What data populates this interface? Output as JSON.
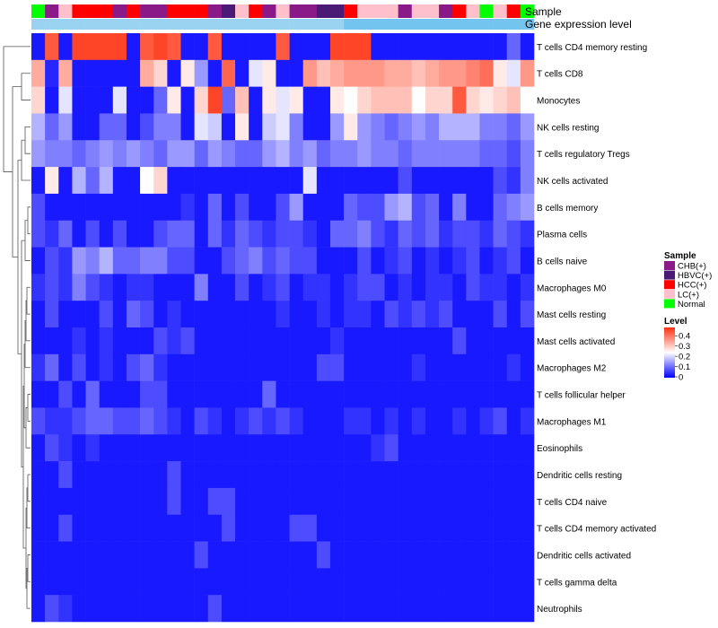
{
  "chart_data": {
    "type": "heatmap",
    "annotation_tracks": [
      "Sample",
      "Gene expression level"
    ],
    "rows": [
      "T cells CD4 memory resting",
      "T cells CD8",
      "Monocytes",
      "NK cells resting",
      "T cells regulatory  Tregs",
      "NK cells activated",
      "B cells memory",
      "Plasma cells",
      "B cells naive",
      "Macrophages M0",
      "Mast cells resting",
      "Mast cells activated",
      "Macrophages M2",
      "T cells follicular helper",
      "Macrophages M1",
      "Eosinophils",
      "Dendritic cells resting",
      "T cells CD4 naive",
      "T cells CD4 memory activated",
      "Dendritic cells activated",
      "T cells gamma delta",
      "Neutrophils"
    ],
    "sample_groups": [
      {
        "name": "CHB(+)",
        "color": "#8b1a89"
      },
      {
        "name": "HBVC(+)",
        "color": "#4b1a77"
      },
      {
        "name": "HCC(+)",
        "color": "#ff0000"
      },
      {
        "name": "LC(+)",
        "color": "#ffc0cb"
      },
      {
        "name": "Normal",
        "color": "#00ff00"
      }
    ],
    "sample_annotation": [
      4,
      0,
      3,
      2,
      2,
      2,
      0,
      2,
      0,
      0,
      2,
      2,
      2,
      0,
      1,
      3,
      2,
      0,
      3,
      0,
      0,
      1,
      1,
      2,
      3,
      3,
      3,
      0,
      3,
      3,
      0,
      2,
      3,
      4,
      3,
      2,
      4
    ],
    "expression_annotation": [
      0,
      0,
      0,
      0,
      0,
      0,
      0,
      0,
      0,
      0,
      0,
      0,
      0,
      0,
      0,
      0,
      0,
      0,
      0,
      0,
      0,
      0,
      0,
      1,
      1,
      1,
      1,
      1,
      1,
      1,
      1,
      1,
      1,
      1,
      1,
      1,
      1
    ],
    "expression_colors": [
      "#9ad3f2",
      "#74c4f0"
    ],
    "color_scale": {
      "title": "Level",
      "min": 0,
      "max": 0.4,
      "ticks": [
        "0",
        "0.1",
        "0.2",
        "0.3",
        "0.4"
      ],
      "colors": [
        "#0000ff",
        "#ffffff",
        "#ff3010"
      ]
    },
    "values": [
      [
        0.02,
        0.36,
        0.02,
        0.38,
        0.38,
        0.38,
        0.38,
        0.02,
        0.36,
        0.38,
        0.36,
        0.02,
        0.02,
        0.36,
        0.02,
        0.02,
        0.02,
        0.02,
        0.36,
        0.02,
        0.02,
        0.02,
        0.38,
        0.38,
        0.38,
        0.02,
        0.02,
        0.02,
        0.02,
        0.02,
        0.02,
        0.02,
        0.02,
        0.02,
        0.02,
        0.08,
        0.02
      ],
      [
        0.28,
        0.03,
        0.28,
        0.02,
        0.02,
        0.02,
        0.02,
        0.02,
        0.28,
        0.24,
        0.02,
        0.22,
        0.12,
        0.02,
        0.35,
        0.02,
        0.18,
        0.22,
        0.02,
        0.02,
        0.3,
        0.26,
        0.28,
        0.3,
        0.3,
        0.3,
        0.28,
        0.28,
        0.26,
        0.28,
        0.3,
        0.3,
        0.32,
        0.34,
        0.22,
        0.18,
        0.3
      ],
      [
        0.24,
        0.02,
        0.18,
        0.02,
        0.02,
        0.02,
        0.18,
        0.02,
        0.02,
        0.08,
        0.22,
        0.02,
        0.24,
        0.38,
        0.08,
        0.26,
        0.02,
        0.22,
        0.18,
        0.22,
        0.02,
        0.02,
        0.22,
        0.2,
        0.24,
        0.26,
        0.26,
        0.26,
        0.2,
        0.24,
        0.24,
        0.36,
        0.24,
        0.22,
        0.24,
        0.26,
        0.2
      ],
      [
        0.14,
        0.08,
        0.12,
        0.02,
        0.02,
        0.08,
        0.08,
        0.02,
        0.06,
        0.1,
        0.1,
        0.02,
        0.18,
        0.16,
        0.02,
        0.22,
        0.02,
        0.16,
        0.18,
        0.1,
        0.02,
        0.02,
        0.12,
        0.22,
        0.12,
        0.1,
        0.08,
        0.1,
        0.12,
        0.1,
        0.14,
        0.14,
        0.14,
        0.1,
        0.1,
        0.08,
        0.12
      ],
      [
        0.12,
        0.1,
        0.1,
        0.08,
        0.1,
        0.12,
        0.1,
        0.12,
        0.1,
        0.08,
        0.12,
        0.12,
        0.08,
        0.12,
        0.1,
        0.08,
        0.08,
        0.12,
        0.14,
        0.1,
        0.12,
        0.08,
        0.1,
        0.1,
        0.12,
        0.1,
        0.1,
        0.08,
        0.1,
        0.1,
        0.1,
        0.1,
        0.1,
        0.08,
        0.08,
        0.06,
        0.1
      ],
      [
        0.02,
        0.22,
        0.02,
        0.14,
        0.08,
        0.14,
        0.02,
        0.02,
        0.2,
        0.24,
        0.02,
        0.02,
        0.02,
        0.02,
        0.02,
        0.02,
        0.02,
        0.02,
        0.02,
        0.02,
        0.18,
        0.02,
        0.02,
        0.02,
        0.02,
        0.02,
        0.02,
        0.06,
        0.02,
        0.02,
        0.02,
        0.02,
        0.02,
        0.02,
        0.06,
        0.04,
        0.1
      ],
      [
        0.06,
        0.02,
        0.02,
        0.02,
        0.02,
        0.02,
        0.02,
        0.02,
        0.02,
        0.02,
        0.02,
        0.04,
        0.02,
        0.08,
        0.02,
        0.06,
        0.02,
        0.02,
        0.06,
        0.12,
        0.02,
        0.02,
        0.02,
        0.08,
        0.06,
        0.06,
        0.12,
        0.14,
        0.06,
        0.08,
        0.02,
        0.1,
        0.02,
        0.02,
        0.08,
        0.1,
        0.12
      ],
      [
        0.06,
        0.04,
        0.08,
        0.02,
        0.06,
        0.02,
        0.06,
        0.02,
        0.02,
        0.06,
        0.08,
        0.08,
        0.02,
        0.08,
        0.04,
        0.08,
        0.06,
        0.04,
        0.06,
        0.06,
        0.04,
        0.02,
        0.08,
        0.08,
        0.1,
        0.06,
        0.04,
        0.08,
        0.06,
        0.08,
        0.04,
        0.06,
        0.06,
        0.04,
        0.08,
        0.06,
        0.04
      ],
      [
        0.02,
        0.06,
        0.04,
        0.12,
        0.1,
        0.14,
        0.08,
        0.08,
        0.1,
        0.1,
        0.06,
        0.06,
        0.02,
        0.02,
        0.06,
        0.08,
        0.1,
        0.06,
        0.08,
        0.06,
        0.06,
        0.02,
        0.02,
        0.02,
        0.06,
        0.02,
        0.04,
        0.06,
        0.02,
        0.04,
        0.02,
        0.04,
        0.06,
        0.02,
        0.04,
        0.06,
        0.02
      ],
      [
        0.04,
        0.06,
        0.04,
        0.1,
        0.06,
        0.04,
        0.02,
        0.04,
        0.04,
        0.02,
        0.02,
        0.02,
        0.1,
        0.02,
        0.02,
        0.06,
        0.02,
        0.04,
        0.06,
        0.02,
        0.04,
        0.04,
        0.02,
        0.04,
        0.06,
        0.06,
        0.02,
        0.04,
        0.02,
        0.04,
        0.04,
        0.02,
        0.06,
        0.04,
        0.04,
        0.02,
        0.04
      ],
      [
        0.02,
        0.06,
        0.02,
        0.02,
        0.02,
        0.06,
        0.02,
        0.08,
        0.06,
        0.02,
        0.04,
        0.02,
        0.02,
        0.02,
        0.02,
        0.02,
        0.02,
        0.02,
        0.04,
        0.02,
        0.02,
        0.04,
        0.02,
        0.04,
        0.04,
        0.02,
        0.06,
        0.04,
        0.06,
        0.04,
        0.06,
        0.02,
        0.02,
        0.02,
        0.06,
        0.02,
        0.06
      ],
      [
        0.02,
        0.02,
        0.02,
        0.04,
        0.02,
        0.04,
        0.02,
        0.02,
        0.02,
        0.06,
        0.04,
        0.06,
        0.02,
        0.02,
        0.02,
        0.02,
        0.02,
        0.02,
        0.02,
        0.02,
        0.02,
        0.02,
        0.04,
        0.02,
        0.02,
        0.02,
        0.02,
        0.02,
        0.02,
        0.02,
        0.02,
        0.06,
        0.02,
        0.02,
        0.02,
        0.02,
        0.02
      ],
      [
        0.04,
        0.08,
        0.02,
        0.06,
        0.02,
        0.04,
        0.02,
        0.06,
        0.08,
        0.04,
        0.02,
        0.02,
        0.02,
        0.02,
        0.02,
        0.02,
        0.02,
        0.02,
        0.02,
        0.02,
        0.02,
        0.06,
        0.06,
        0.02,
        0.02,
        0.02,
        0.02,
        0.02,
        0.04,
        0.02,
        0.02,
        0.02,
        0.02,
        0.02,
        0.02,
        0.04,
        0.02
      ],
      [
        0.02,
        0.02,
        0.06,
        0.02,
        0.08,
        0.02,
        0.02,
        0.02,
        0.06,
        0.06,
        0.02,
        0.02,
        0.02,
        0.02,
        0.02,
        0.02,
        0.02,
        0.08,
        0.02,
        0.02,
        0.02,
        0.02,
        0.02,
        0.02,
        0.02,
        0.02,
        0.02,
        0.02,
        0.02,
        0.02,
        0.02,
        0.02,
        0.02,
        0.02,
        0.02,
        0.02,
        0.02
      ],
      [
        0.06,
        0.04,
        0.04,
        0.06,
        0.08,
        0.08,
        0.06,
        0.06,
        0.08,
        0.06,
        0.04,
        0.02,
        0.06,
        0.04,
        0.02,
        0.04,
        0.06,
        0.04,
        0.06,
        0.04,
        0.02,
        0.02,
        0.02,
        0.04,
        0.04,
        0.02,
        0.04,
        0.02,
        0.04,
        0.02,
        0.02,
        0.04,
        0.02,
        0.04,
        0.06,
        0.02,
        0.04
      ],
      [
        0.02,
        0.06,
        0.04,
        0.02,
        0.04,
        0.02,
        0.02,
        0.02,
        0.02,
        0.02,
        0.02,
        0.02,
        0.02,
        0.02,
        0.02,
        0.02,
        0.02,
        0.02,
        0.02,
        0.02,
        0.02,
        0.02,
        0.02,
        0.02,
        0.02,
        0.04,
        0.06,
        0.02,
        0.02,
        0.02,
        0.02,
        0.02,
        0.02,
        0.02,
        0.02,
        0.02,
        0.02
      ],
      [
        0.02,
        0.02,
        0.06,
        0.02,
        0.02,
        0.02,
        0.02,
        0.02,
        0.02,
        0.02,
        0.06,
        0.02,
        0.02,
        0.02,
        0.02,
        0.02,
        0.02,
        0.02,
        0.02,
        0.02,
        0.02,
        0.02,
        0.02,
        0.02,
        0.02,
        0.02,
        0.02,
        0.02,
        0.02,
        0.02,
        0.02,
        0.02,
        0.02,
        0.02,
        0.02,
        0.02,
        0.02
      ],
      [
        0.02,
        0.02,
        0.02,
        0.02,
        0.02,
        0.02,
        0.02,
        0.02,
        0.02,
        0.02,
        0.06,
        0.02,
        0.02,
        0.06,
        0.06,
        0.02,
        0.02,
        0.02,
        0.02,
        0.02,
        0.02,
        0.02,
        0.02,
        0.02,
        0.02,
        0.02,
        0.02,
        0.02,
        0.02,
        0.02,
        0.02,
        0.02,
        0.02,
        0.02,
        0.02,
        0.02,
        0.02
      ],
      [
        0.02,
        0.02,
        0.06,
        0.02,
        0.02,
        0.02,
        0.02,
        0.02,
        0.02,
        0.02,
        0.02,
        0.02,
        0.02,
        0.02,
        0.06,
        0.02,
        0.02,
        0.02,
        0.02,
        0.06,
        0.06,
        0.02,
        0.02,
        0.02,
        0.02,
        0.02,
        0.02,
        0.02,
        0.02,
        0.02,
        0.02,
        0.02,
        0.02,
        0.02,
        0.02,
        0.02,
        0.02
      ],
      [
        0.02,
        0.02,
        0.02,
        0.02,
        0.02,
        0.02,
        0.02,
        0.02,
        0.02,
        0.02,
        0.02,
        0.02,
        0.06,
        0.02,
        0.02,
        0.02,
        0.02,
        0.02,
        0.02,
        0.02,
        0.02,
        0.06,
        0.02,
        0.02,
        0.02,
        0.02,
        0.02,
        0.02,
        0.02,
        0.02,
        0.02,
        0.02,
        0.02,
        0.02,
        0.02,
        0.02,
        0.02
      ],
      [
        0.02,
        0.02,
        0.02,
        0.02,
        0.02,
        0.02,
        0.02,
        0.02,
        0.02,
        0.02,
        0.02,
        0.02,
        0.02,
        0.02,
        0.02,
        0.02,
        0.02,
        0.02,
        0.02,
        0.02,
        0.02,
        0.02,
        0.02,
        0.02,
        0.02,
        0.02,
        0.02,
        0.02,
        0.02,
        0.02,
        0.02,
        0.02,
        0.02,
        0.02,
        0.02,
        0.02,
        0.02
      ],
      [
        0.02,
        0.06,
        0.04,
        0.02,
        0.02,
        0.02,
        0.02,
        0.02,
        0.02,
        0.02,
        0.02,
        0.02,
        0.02,
        0.06,
        0.02,
        0.02,
        0.02,
        0.02,
        0.02,
        0.02,
        0.02,
        0.02,
        0.02,
        0.02,
        0.02,
        0.02,
        0.02,
        0.02,
        0.02,
        0.02,
        0.02,
        0.02,
        0.02,
        0.02,
        0.02,
        0.02,
        0.02
      ]
    ]
  }
}
